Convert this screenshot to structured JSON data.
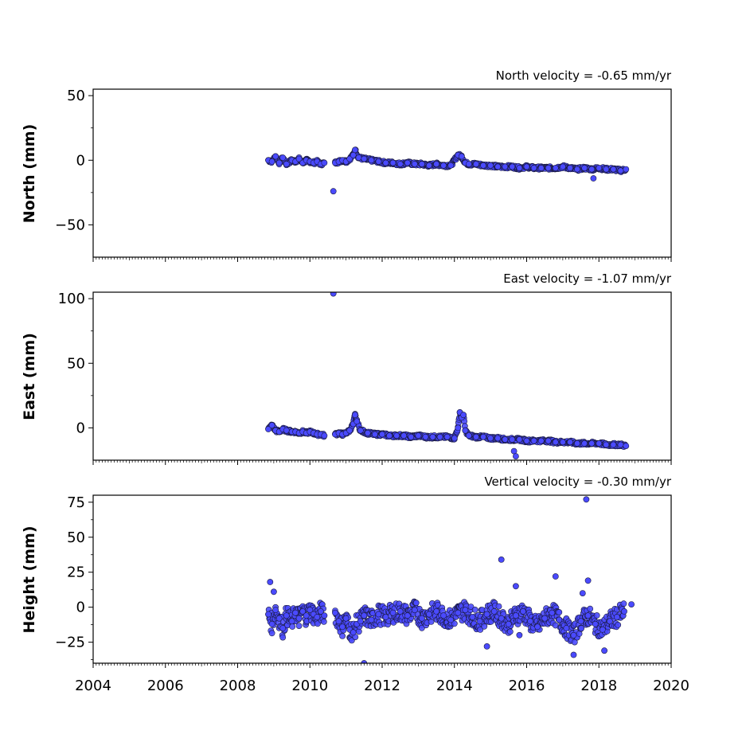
{
  "chart_data": [
    {
      "type": "scatter",
      "title": "North velocity = -0.65 mm/yr",
      "ylabel": "North (mm)",
      "xlim": [
        2004,
        2020
      ],
      "ylim": [
        -75,
        55
      ],
      "yticks": [
        50,
        0,
        -50
      ],
      "ytick_labels": [
        "50",
        "0",
        "−50"
      ],
      "marker_color": "#4a4aff",
      "series": [
        {
          "values_x": [
            2008.85,
            2008.95,
            2009.05,
            2009.15,
            2009.25,
            2009.35,
            2009.5,
            2009.6,
            2009.7,
            2009.8,
            2009.9,
            2010.0,
            2010.1,
            2010.2,
            2010.3,
            2010.4,
            2010.7,
            2010.8,
            2010.9,
            2011.0,
            2011.1,
            2011.2,
            2011.25,
            2011.35,
            2011.5,
            2011.7,
            2011.9,
            2012.1,
            2012.3,
            2012.5,
            2012.7,
            2012.9,
            2013.1,
            2013.3,
            2013.5,
            2013.7,
            2013.9,
            2014.1,
            2014.2,
            2014.3,
            2014.4,
            2014.6,
            2014.8,
            2015.0,
            2015.2,
            2015.4,
            2015.6,
            2015.8,
            2016.0,
            2016.2,
            2016.4,
            2016.6,
            2016.8,
            2017.0,
            2017.2,
            2017.4,
            2017.6,
            2017.8,
            2018.0,
            2018.2,
            2018.4,
            2018.6,
            2018.75
          ],
          "values_y": [
            0,
            -1,
            3,
            -2,
            2,
            -3,
            0,
            -1,
            1,
            -2,
            0,
            -1,
            -2,
            -1,
            -3,
            -2,
            -2,
            -1,
            0,
            -1,
            1,
            4,
            8,
            2,
            1,
            0,
            -1,
            -2,
            -2,
            -3,
            -2,
            -3,
            -3,
            -4,
            -3,
            -4,
            -4,
            4,
            3,
            -2,
            -3,
            -3,
            -4,
            -4,
            -5,
            -5,
            -5,
            -6,
            -5,
            -6,
            -6,
            -6,
            -6,
            -5,
            -6,
            -7,
            -6,
            -7,
            -6,
            -7,
            -7,
            -8,
            -7
          ]
        }
      ],
      "outliers_x": [
        2010.65,
        2017.85
      ],
      "outliers_y": [
        -24,
        -14
      ]
    },
    {
      "type": "scatter",
      "title": "East velocity = -1.07 mm/yr",
      "ylabel": "East (mm)",
      "xlim": [
        2004,
        2020
      ],
      "ylim": [
        -25,
        105
      ],
      "yticks": [
        100,
        50,
        0
      ],
      "ytick_labels": [
        "100",
        "50",
        "0"
      ],
      "marker_color": "#4a4aff",
      "series": [
        {
          "values_x": [
            2008.85,
            2008.95,
            2009.05,
            2009.15,
            2009.25,
            2009.35,
            2009.5,
            2009.6,
            2009.7,
            2009.8,
            2009.9,
            2010.0,
            2010.1,
            2010.2,
            2010.3,
            2010.4,
            2010.7,
            2010.8,
            2010.9,
            2011.0,
            2011.1,
            2011.2,
            2011.25,
            2011.3,
            2011.4,
            2011.6,
            2011.8,
            2012.0,
            2012.2,
            2012.4,
            2012.6,
            2012.8,
            2013.0,
            2013.2,
            2013.4,
            2013.6,
            2013.8,
            2014.0,
            2014.1,
            2014.15,
            2014.2,
            2014.25,
            2014.3,
            2014.4,
            2014.6,
            2014.8,
            2015.0,
            2015.2,
            2015.4,
            2015.6,
            2015.8,
            2016.0,
            2016.2,
            2016.4,
            2016.6,
            2016.8,
            2017.0,
            2017.2,
            2017.4,
            2017.6,
            2017.8,
            2018.0,
            2018.2,
            2018.4,
            2018.6,
            2018.75
          ],
          "values_y": [
            -1,
            2,
            -2,
            -3,
            -1,
            -2,
            -3,
            -3,
            -4,
            -3,
            -4,
            -3,
            -4,
            -5,
            -5,
            -6,
            -5,
            -4,
            -5,
            -4,
            -2,
            3,
            10,
            5,
            -2,
            -4,
            -5,
            -5,
            -6,
            -6,
            -6,
            -7,
            -6,
            -7,
            -7,
            -7,
            -7,
            -8,
            0,
            12,
            8,
            10,
            -2,
            -6,
            -7,
            -7,
            -8,
            -8,
            -9,
            -9,
            -9,
            -10,
            -10,
            -10,
            -10,
            -11,
            -11,
            -11,
            -12,
            -12,
            -12,
            -12,
            -13,
            -13,
            -13,
            -14
          ]
        }
      ],
      "outliers_x": [
        2010.65,
        2015.65,
        2015.7
      ],
      "outliers_y": [
        104,
        -18,
        -22
      ]
    },
    {
      "type": "scatter",
      "title": "Vertical velocity = -0.30 mm/yr",
      "ylabel": "Height (mm)",
      "xlim": [
        2004,
        2020
      ],
      "ylim": [
        -40,
        80
      ],
      "yticks": [
        75,
        50,
        25,
        0,
        -25
      ],
      "ytick_labels": [
        "75",
        "50",
        "25",
        "0",
        "−25"
      ],
      "marker_color": "#4a4aff",
      "series": [
        {
          "values_x": [
            2008.85,
            2008.95,
            2009.05,
            2009.15,
            2009.25,
            2009.35,
            2009.5,
            2009.6,
            2009.7,
            2009.8,
            2009.9,
            2010.0,
            2010.1,
            2010.2,
            2010.3,
            2010.4,
            2010.7,
            2010.8,
            2010.9,
            2011.0,
            2011.1,
            2011.2,
            2011.3,
            2011.4,
            2011.5,
            2011.7,
            2011.9,
            2012.1,
            2012.3,
            2012.5,
            2012.7,
            2012.9,
            2013.1,
            2013.3,
            2013.5,
            2013.7,
            2013.9,
            2014.1,
            2014.3,
            2014.5,
            2014.7,
            2014.9,
            2015.1,
            2015.3,
            2015.5,
            2015.7,
            2015.9,
            2016.1,
            2016.3,
            2016.5,
            2016.7,
            2016.9,
            2017.1,
            2017.3,
            2017.5,
            2017.7,
            2017.9,
            2018.1,
            2018.3,
            2018.5,
            2018.7
          ],
          "values_y": [
            -5,
            -12,
            -2,
            -8,
            -15,
            -6,
            -10,
            -4,
            -8,
            -3,
            -6,
            -2,
            -5,
            -7,
            -3,
            -6,
            -4,
            -10,
            -14,
            -8,
            -16,
            -18,
            -12,
            -10,
            -6,
            -9,
            -5,
            -7,
            -4,
            -3,
            -6,
            -2,
            -8,
            -5,
            -3,
            -6,
            -9,
            -4,
            -2,
            -7,
            -10,
            -5,
            -3,
            -8,
            -12,
            -6,
            -3,
            -10,
            -14,
            -8,
            -4,
            -9,
            -15,
            -20,
            -10,
            -6,
            -12,
            -16,
            -10,
            -7,
            -3
          ]
        }
      ],
      "outliers_x": [
        2008.9,
        2009.0,
        2011.5,
        2014.9,
        2015.3,
        2015.7,
        2016.8,
        2017.65,
        2017.7,
        2017.55,
        2017.3,
        2018.15,
        2018.9,
        2015.8
      ],
      "outliers_y": [
        18,
        11,
        -40,
        -28,
        34,
        15,
        22,
        77,
        19,
        10,
        -34,
        -31,
        2,
        -20
      ]
    }
  ],
  "xaxis": {
    "ticks": [
      2004,
      2006,
      2008,
      2010,
      2012,
      2014,
      2016,
      2018,
      2020
    ],
    "tick_labels": [
      "2004",
      "2006",
      "2008",
      "2010",
      "2012",
      "2014",
      "2016",
      "2018",
      "2020"
    ]
  }
}
